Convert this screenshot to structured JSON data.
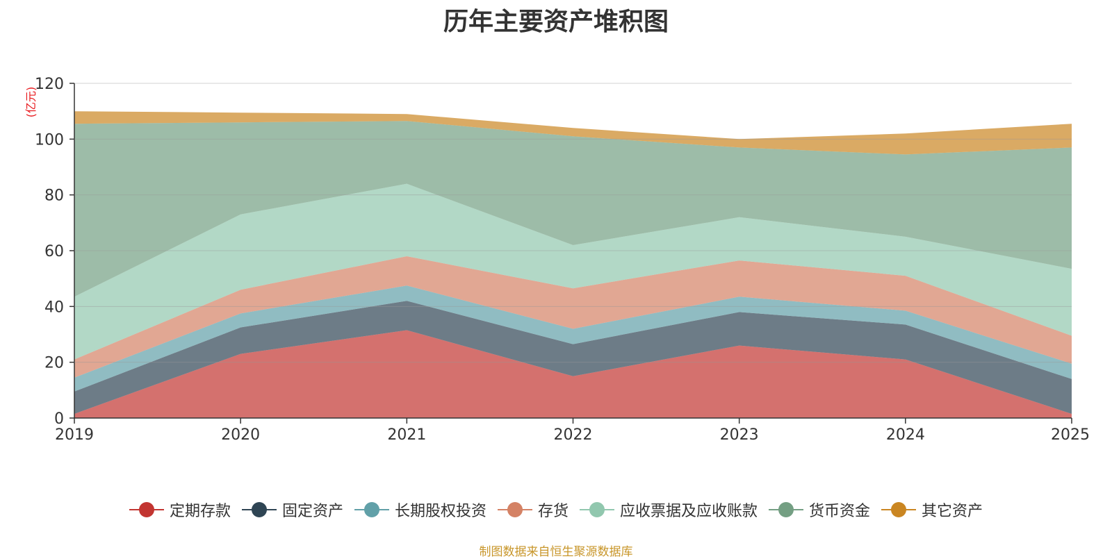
{
  "colors": {
    "定期存款": "#c23531",
    "固定资产": "#2f4554",
    "长期股权投资": "#61a0a8",
    "存货": "#d48265",
    "应收票据及应收账款": "#91c7ae",
    "货币资金": "#749f83",
    "其它资产": "#ca8622",
    "grid": "#999999",
    "axis": "#333333",
    "unit": "#e8171b",
    "source": "#c8962a"
  },
  "chart_data": {
    "type": "area",
    "stacked": true,
    "title": "历年主要资产堆积图",
    "unit_label": "(亿元)",
    "x": [
      "2019",
      "2020",
      "2021",
      "2022",
      "2023",
      "2024",
      "2025"
    ],
    "ylim": [
      0,
      120
    ],
    "yticks": [
      0,
      20,
      40,
      60,
      80,
      100,
      120
    ],
    "grid": true,
    "legend_position": "bottom",
    "series": [
      {
        "name": "定期存款",
        "values": [
          1.5,
          23,
          31.5,
          15,
          26,
          21,
          1.5
        ]
      },
      {
        "name": "固定资产",
        "values": [
          8,
          9.5,
          10.5,
          11.5,
          12,
          12.5,
          12.5
        ]
      },
      {
        "name": "长期股权投资",
        "values": [
          5,
          5,
          5.5,
          5.5,
          5.5,
          5,
          5.5
        ]
      },
      {
        "name": "存货",
        "values": [
          6.5,
          8.5,
          10.5,
          14.5,
          13,
          12.5,
          10
        ]
      },
      {
        "name": "应收票据及应收账款",
        "values": [
          22.5,
          27,
          26,
          15.5,
          15.5,
          14,
          24
        ]
      },
      {
        "name": "货币资金",
        "values": [
          62,
          33,
          22.5,
          39,
          25,
          29.5,
          43.5
        ]
      },
      {
        "name": "其它资产",
        "values": [
          4.5,
          3.5,
          2.5,
          3,
          3,
          7.5,
          8.5
        ]
      }
    ]
  },
  "legend": {
    "items": [
      "定期存款",
      "固定资产",
      "长期股权投资",
      "存货",
      "应收票据及应收账款",
      "货币资金",
      "其它资产"
    ]
  },
  "footer": {
    "source": "制图数据来自恒生聚源数据库"
  }
}
